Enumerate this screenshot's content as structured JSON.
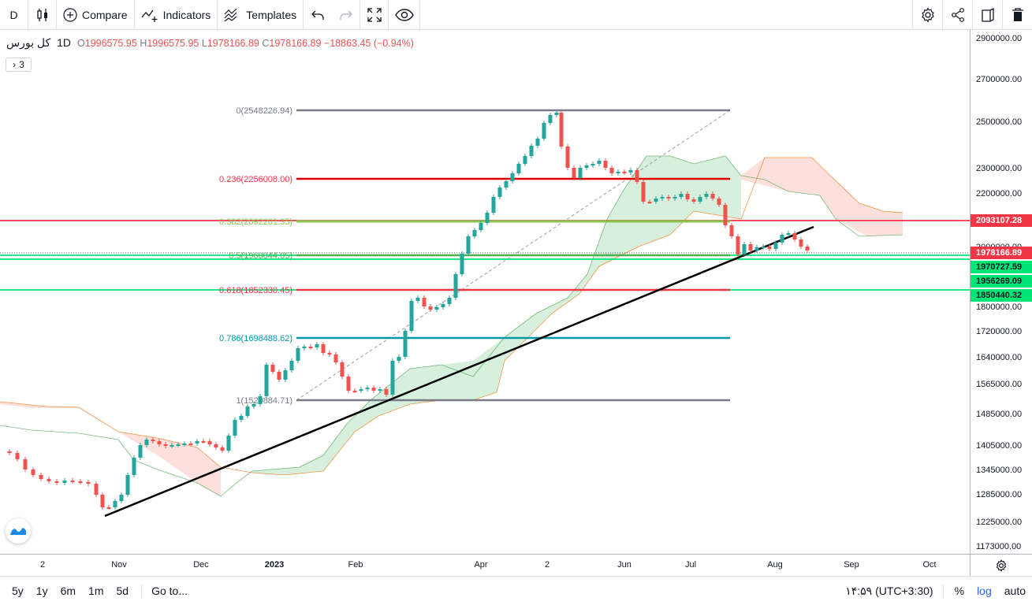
{
  "toolbar": {
    "interval": "D",
    "compare_label": "Compare",
    "indicators_label": "Indicators",
    "templates_label": "Templates"
  },
  "legend": {
    "symbol": "کل بورس",
    "interval": "1D",
    "open_key": "O",
    "open": "1996575.95",
    "high_key": "H",
    "high": "1996575.95",
    "low_key": "L",
    "low": "1978166.89",
    "close_key": "C",
    "close": "1978166.89",
    "change": "−18863.45 (−0.94%)",
    "collapsed_count": "3"
  },
  "price_axis": {
    "ticks": [
      "2900000.00",
      "2700000.00",
      "2500000.00",
      "2300000.00",
      "2200000.00",
      "2000000.00",
      "1800000.00",
      "1720000.00",
      "1640000.00",
      "1565000.00",
      "1485000.00",
      "1405000.00",
      "1345000.00",
      "1285000.00",
      "1225000.00",
      "1173000.00"
    ],
    "labels": [
      {
        "text": "2093107.28",
        "bg": "#f23645",
        "fg": "#ffffff"
      },
      {
        "text": "1978166.89",
        "bg": "#f23645",
        "fg": "#ffffff"
      },
      {
        "text": "1970727.59",
        "bg": "#00e676",
        "fg": "#131722"
      },
      {
        "text": "1956269.09",
        "bg": "#00e676",
        "fg": "#131722"
      },
      {
        "text": "1850440.32",
        "bg": "#00e676",
        "fg": "#131722"
      }
    ]
  },
  "time_axis": {
    "ticks": [
      "2",
      "Nov",
      "Dec",
      "2023",
      "Feb",
      "Apr",
      "2",
      "Jun",
      "Jul",
      "Aug",
      "Sep",
      "Oct"
    ]
  },
  "fib_levels": [
    {
      "label": "0(2548226.94)",
      "color": "#787b86"
    },
    {
      "label": "0.236(2256008.00)",
      "color": "#f23645"
    },
    {
      "label": "0.382(2092201.35)",
      "color": "#8bc34a"
    },
    {
      "label": "0.5(1960044.05)",
      "color": "#4caf50"
    },
    {
      "label": "0.618(1852330.45)",
      "color": "#f23645"
    },
    {
      "label": "0.786(1698488.62)",
      "color": "#0097a7"
    },
    {
      "label": "1(1520884.71)",
      "color": "#787b86"
    }
  ],
  "bottombar": {
    "ranges": [
      "5y",
      "1y",
      "6m",
      "1m",
      "5d"
    ],
    "goto": "Go to...",
    "clock": "۱۴:۵۹ (UTC+3:30)",
    "percent": "%",
    "log": "log",
    "auto": "auto"
  },
  "colors": {
    "up": "#26a69a",
    "down": "#ef5350",
    "cloud_bull": "#d6f0dd",
    "cloud_bear": "#fde0dc",
    "trendline": "#000000"
  },
  "chart_data": {
    "type": "candlestick",
    "symbol": "کل بورس",
    "interval": "1D",
    "log_scale": true,
    "ylim": [
      1173000,
      2900000
    ],
    "fibonacci_retracement": [
      {
        "ratio": 0,
        "price": 2548226.94
      },
      {
        "ratio": 0.236,
        "price": 2256008.0
      },
      {
        "ratio": 0.382,
        "price": 2092201.35
      },
      {
        "ratio": 0.5,
        "price": 1960044.05
      },
      {
        "ratio": 0.618,
        "price": 1852330.45
      },
      {
        "ratio": 0.786,
        "price": 1698488.62
      },
      {
        "ratio": 1,
        "price": 1520884.71
      }
    ],
    "horizontal_lines": [
      {
        "price": 2093107.28,
        "color": "#f23645"
      },
      {
        "price": 1970727.59,
        "color": "#00e676"
      },
      {
        "price": 1956269.09,
        "color": "#00e676"
      },
      {
        "price": 1850440.32,
        "color": "#00e676"
      }
    ],
    "last_price": 1978166.89
  }
}
